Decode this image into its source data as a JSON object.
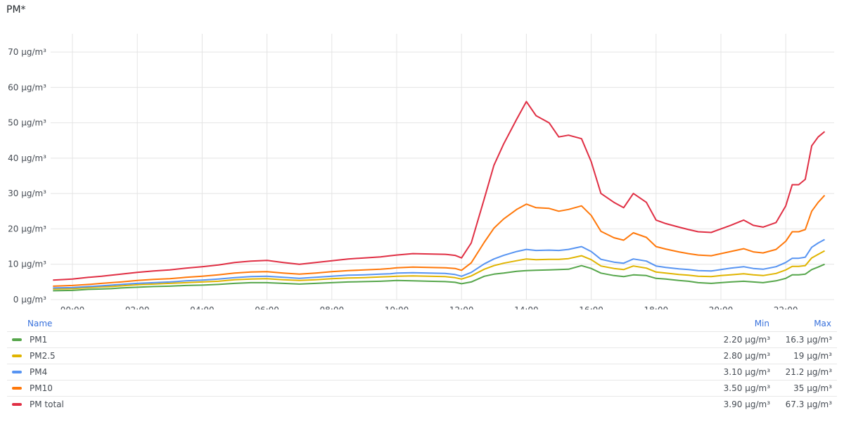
{
  "panel": {
    "title": "PM*"
  },
  "chart_data": {
    "type": "line",
    "y_unit": "µg/m³",
    "ylim": [
      0,
      70
    ],
    "y_ticks": [
      "0 µg/m³",
      "10 µg/m³",
      "20 µg/m³",
      "30 µg/m³",
      "40 µg/m³",
      "50 µg/m³",
      "60 µg/m³",
      "70 µg/m³"
    ],
    "x_ticks": [
      "00:00",
      "02:00",
      "04:00",
      "06:00",
      "08:00",
      "10:00",
      "12:00",
      "14:00",
      "16:00",
      "18:00",
      "20:00",
      "22:00"
    ],
    "x_hours": [
      -0.6,
      0,
      0.5,
      0.9,
      1.2,
      1.5,
      2,
      2.5,
      3,
      3.5,
      4,
      4.5,
      5,
      5.5,
      6,
      6.5,
      7,
      7.5,
      8,
      8.5,
      9,
      9.5,
      9.8,
      10,
      10.5,
      11,
      11.5,
      11.8,
      12,
      12.3,
      12.7,
      13,
      13.3,
      13.7,
      14,
      14.3,
      14.7,
      15,
      15.3,
      15.7,
      16,
      16.3,
      16.7,
      17,
      17.3,
      17.7,
      18,
      18.3,
      18.7,
      19,
      19.3,
      19.7,
      20,
      20.3,
      20.7,
      21,
      21.3,
      21.7,
      22,
      22.2,
      22.4,
      22.6,
      22.8,
      23,
      23.2
    ],
    "series": [
      {
        "name": "PM1",
        "color": "#56a64b",
        "values": [
          2.5,
          2.6,
          2.9,
          3.0,
          3.1,
          3.3,
          3.5,
          3.7,
          3.8,
          4.0,
          4.1,
          4.3,
          4.6,
          4.8,
          4.8,
          4.6,
          4.4,
          4.6,
          4.8,
          5.0,
          5.1,
          5.2,
          5.3,
          5.4,
          5.3,
          5.2,
          5.1,
          4.9,
          4.5,
          5.0,
          6.6,
          7.2,
          7.5,
          8.0,
          8.2,
          8.3,
          8.4,
          8.5,
          8.6,
          9.6,
          8.8,
          7.5,
          6.8,
          6.5,
          7.0,
          6.8,
          6.0,
          5.8,
          5.4,
          5.2,
          4.8,
          4.6,
          4.8,
          5.0,
          5.2,
          5.0,
          4.8,
          5.3,
          6.0,
          7.0,
          7.0,
          7.2,
          8.5,
          9.2,
          10.0
        ]
      },
      {
        "name": "PM2.5",
        "color": "#e0b400",
        "values": [
          3.0,
          3.1,
          3.4,
          3.6,
          3.7,
          3.9,
          4.2,
          4.4,
          4.6,
          4.8,
          5.0,
          5.2,
          5.6,
          5.8,
          5.9,
          5.6,
          5.4,
          5.6,
          5.9,
          6.1,
          6.2,
          6.4,
          6.5,
          6.6,
          6.7,
          6.6,
          6.5,
          6.2,
          5.8,
          6.7,
          8.6,
          9.6,
          10.3,
          11.0,
          11.5,
          11.3,
          11.4,
          11.4,
          11.6,
          12.4,
          11.3,
          9.5,
          8.8,
          8.5,
          9.5,
          8.9,
          7.8,
          7.5,
          7.1,
          6.9,
          6.6,
          6.5,
          6.8,
          7.0,
          7.3,
          7.0,
          6.8,
          7.4,
          8.4,
          9.4,
          9.4,
          9.6,
          11.8,
          12.8,
          13.8
        ]
      },
      {
        "name": "PM4",
        "color": "#5794f2",
        "values": [
          3.3,
          3.4,
          3.7,
          3.9,
          4.1,
          4.3,
          4.6,
          4.8,
          5.0,
          5.3,
          5.5,
          5.8,
          6.2,
          6.5,
          6.6,
          6.3,
          6.0,
          6.3,
          6.6,
          6.9,
          7.0,
          7.2,
          7.3,
          7.5,
          7.6,
          7.5,
          7.4,
          7.1,
          6.6,
          7.7,
          10.1,
          11.5,
          12.5,
          13.6,
          14.2,
          13.9,
          14.0,
          13.9,
          14.2,
          15.0,
          13.6,
          11.4,
          10.6,
          10.3,
          11.5,
          10.9,
          9.5,
          9.1,
          8.7,
          8.5,
          8.2,
          8.1,
          8.5,
          8.9,
          9.3,
          8.8,
          8.6,
          9.3,
          10.5,
          11.7,
          11.7,
          12.0,
          14.8,
          16.0,
          17.0
        ]
      },
      {
        "name": "PM10",
        "color": "#ff780a",
        "values": [
          3.8,
          4.0,
          4.3,
          4.6,
          4.8,
          5.0,
          5.4,
          5.7,
          5.9,
          6.3,
          6.6,
          7.0,
          7.5,
          7.8,
          7.9,
          7.5,
          7.2,
          7.5,
          7.9,
          8.2,
          8.4,
          8.6,
          8.8,
          9.0,
          9.2,
          9.1,
          9.0,
          8.8,
          8.3,
          10.4,
          16.2,
          20.2,
          22.8,
          25.5,
          27.0,
          26.0,
          25.8,
          25.0,
          25.5,
          26.5,
          23.8,
          19.3,
          17.5,
          16.8,
          18.9,
          17.6,
          15.0,
          14.3,
          13.5,
          13.0,
          12.6,
          12.4,
          13.0,
          13.6,
          14.4,
          13.5,
          13.2,
          14.2,
          16.5,
          19.2,
          19.2,
          19.8,
          25.0,
          27.5,
          29.5
        ]
      },
      {
        "name": "PM total",
        "color": "#e02f44",
        "values": [
          5.5,
          5.8,
          6.3,
          6.6,
          6.9,
          7.2,
          7.7,
          8.1,
          8.4,
          8.9,
          9.3,
          9.8,
          10.5,
          10.9,
          11.1,
          10.5,
          10.0,
          10.5,
          11.0,
          11.5,
          11.8,
          12.1,
          12.4,
          12.6,
          13.0,
          12.9,
          12.8,
          12.5,
          11.8,
          16.0,
          28.5,
          38.0,
          44.0,
          51.0,
          56.0,
          52.0,
          50.0,
          46.0,
          46.5,
          45.5,
          39.0,
          30.0,
          27.5,
          26.0,
          30.0,
          27.5,
          22.5,
          21.5,
          20.5,
          19.8,
          19.2,
          19.0,
          20.0,
          21.0,
          22.5,
          21.0,
          20.5,
          21.8,
          26.5,
          32.5,
          32.5,
          34.0,
          43.5,
          46.0,
          47.5
        ]
      }
    ]
  },
  "legend": {
    "headers": {
      "name": "Name",
      "min": "Min",
      "max": "Max"
    },
    "rows": [
      {
        "name": "PM1",
        "min": "2.20 µg/m³",
        "max": "16.3 µg/m³"
      },
      {
        "name": "PM2.5",
        "min": "2.80 µg/m³",
        "max": "19 µg/m³"
      },
      {
        "name": "PM4",
        "min": "3.10 µg/m³",
        "max": "21.2 µg/m³"
      },
      {
        "name": "PM10",
        "min": "3.50 µg/m³",
        "max": "35 µg/m³"
      },
      {
        "name": "PM total",
        "min": "3.90 µg/m³",
        "max": "67.3 µg/m³"
      }
    ]
  }
}
